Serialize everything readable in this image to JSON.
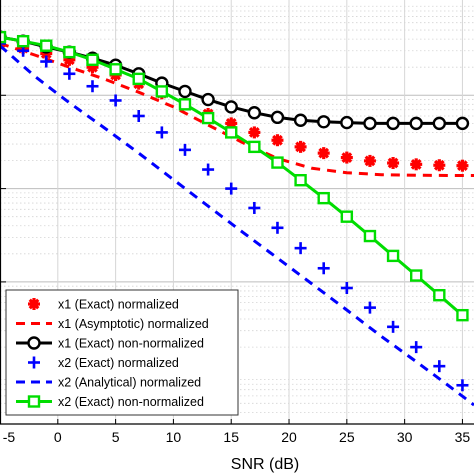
{
  "chart_data": {
    "type": "line",
    "xlabel": "SNR (dB)",
    "ylabel": "",
    "title": "",
    "xlim": [
      -5,
      36
    ],
    "x_ticks": [
      -5,
      0,
      5,
      10,
      15,
      20,
      25,
      30,
      35
    ],
    "y_scale": "log",
    "ylim": [
      3e-05,
      1.05
    ],
    "y_decade_lines": [
      0.1,
      0.01,
      0.001
    ],
    "grid": true,
    "minor_grid": true,
    "legend_position": "bottom-left",
    "series": [
      {
        "name": "x1 (Exact) normalized",
        "line": "none",
        "marker": "asterisk",
        "color": "#ff0000",
        "x": [
          -5,
          -3,
          -1,
          1,
          3,
          5,
          7,
          9,
          11,
          13,
          15,
          17,
          19,
          21,
          23,
          25,
          27,
          29,
          31,
          33,
          35
        ],
        "y": [
          0.36,
          0.32,
          0.28,
          0.24,
          0.2,
          0.165,
          0.133,
          0.105,
          0.082,
          0.063,
          0.05,
          0.04,
          0.033,
          0.028,
          0.024,
          0.0215,
          0.0198,
          0.0188,
          0.0182,
          0.0178,
          0.0176
        ]
      },
      {
        "name": "x1 (Asymptotic) normalized",
        "line": "dashed",
        "marker": "none",
        "color": "#ff0000",
        "x": [
          -5,
          -2,
          1,
          4,
          7,
          10,
          13,
          16,
          19,
          22,
          25,
          28,
          31,
          34,
          36
        ],
        "y": [
          0.36,
          0.27,
          0.2,
          0.15,
          0.108,
          0.075,
          0.048,
          0.031,
          0.021,
          0.0165,
          0.0148,
          0.0141,
          0.0139,
          0.0138,
          0.0138
        ]
      },
      {
        "name": "x1 (Exact) non-normalized",
        "line": "solid",
        "marker": "circle",
        "color": "#000000",
        "x": [
          -5,
          -3,
          -1,
          1,
          3,
          5,
          7,
          9,
          11,
          13,
          15,
          17,
          19,
          21,
          23,
          25,
          27,
          29,
          31,
          33,
          35
        ],
        "y": [
          0.42,
          0.38,
          0.33,
          0.29,
          0.25,
          0.21,
          0.17,
          0.135,
          0.11,
          0.09,
          0.075,
          0.065,
          0.058,
          0.054,
          0.052,
          0.051,
          0.05,
          0.05,
          0.05,
          0.05,
          0.05
        ]
      },
      {
        "name": "x2 (Exact) normalized",
        "line": "none",
        "marker": "plus",
        "color": "#0000ff",
        "x": [
          -5,
          -3,
          -1,
          1,
          3,
          5,
          7,
          9,
          11,
          13,
          15,
          17,
          19,
          21,
          23,
          25,
          27,
          29,
          31,
          33,
          35
        ],
        "y": [
          0.36,
          0.3,
          0.23,
          0.17,
          0.125,
          0.088,
          0.06,
          0.04,
          0.026,
          0.016,
          0.01,
          0.0062,
          0.0038,
          0.0023,
          0.0014,
          0.00086,
          0.00053,
          0.00033,
          0.0002,
          0.000125,
          7.8e-05
        ]
      },
      {
        "name": "x2 (Analytical) normalized",
        "line": "dashed",
        "marker": "none",
        "color": "#0000ff",
        "x": [
          -5,
          -2,
          1,
          4,
          7,
          10,
          13,
          16,
          19,
          22,
          25,
          28,
          31,
          34,
          36
        ],
        "y": [
          0.34,
          0.16,
          0.083,
          0.045,
          0.024,
          0.0125,
          0.0065,
          0.0034,
          0.0018,
          0.00095,
          0.0005,
          0.00026,
          0.00014,
          7.4e-05,
          4.8e-05
        ]
      },
      {
        "name": "x2 (Exact) non-normalized",
        "line": "solid",
        "marker": "square",
        "color": "#00dd00",
        "x": [
          -5,
          -3,
          -1,
          1,
          3,
          5,
          7,
          9,
          11,
          13,
          15,
          17,
          19,
          21,
          23,
          25,
          27,
          29,
          31,
          33,
          35
        ],
        "y": [
          0.42,
          0.38,
          0.34,
          0.29,
          0.24,
          0.19,
          0.15,
          0.11,
          0.08,
          0.057,
          0.04,
          0.028,
          0.019,
          0.0123,
          0.0079,
          0.005,
          0.0031,
          0.0019,
          0.00117,
          0.00072,
          0.00044
        ]
      }
    ]
  }
}
